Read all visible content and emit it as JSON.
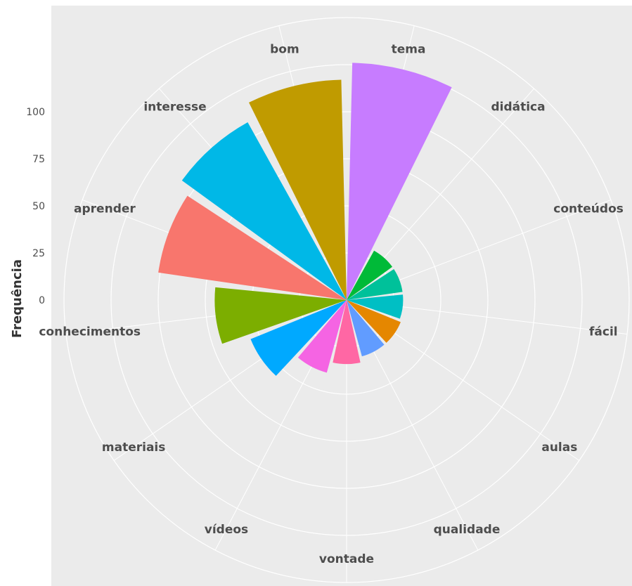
{
  "chart_data": {
    "type": "bar",
    "polar": true,
    "title": "",
    "xlabel": "",
    "ylabel": "Frequência",
    "ylim": [
      -25,
      135
    ],
    "y_ticks": [
      "0",
      "25",
      "50",
      "75",
      "100"
    ],
    "grid": true,
    "legend": "none",
    "categories": [
      "tema",
      "didática",
      "conteúdos",
      "fácil",
      "aulas",
      "qualidade",
      "vontade",
      "vídeos",
      "materiais",
      "conhecimentos",
      "aprender",
      "interesse",
      "bom"
    ],
    "values": [
      101,
      5,
      5,
      5,
      6,
      6,
      9,
      15,
      30,
      45,
      76,
      83,
      92
    ],
    "colors": [
      "#C77CFF",
      "#00BA38",
      "#00C19A",
      "#00BFC4",
      "#E58700",
      "#619CFF",
      "#FF67A4",
      "#F564E3",
      "#00A9FF",
      "#7CAE00",
      "#F8766D",
      "#00B8E7",
      "#C09B00"
    ],
    "background": "#EBEBEB",
    "gridline_color": "#FFFFFF"
  }
}
